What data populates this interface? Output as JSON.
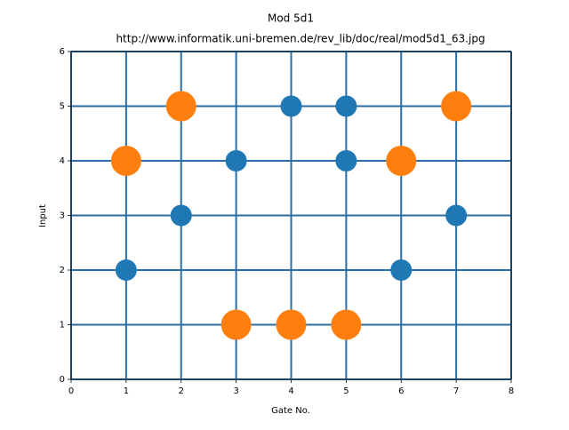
{
  "chart_data": {
    "type": "scatter",
    "title": "Mod 5d1",
    "subtitle": "http://www.informatik.uni-bremen.de/rev_lib/doc/real/mod5d1_63.jpg",
    "x_label": "Gate No.",
    "y_label": "Input",
    "series": [
      {
        "color": "#1f77b4",
        "x": [
          1,
          2,
          3,
          4,
          5,
          5,
          6,
          7
        ],
        "values": [
          2,
          3,
          4,
          5,
          5,
          4,
          2,
          3
        ]
      },
      {
        "color": "#ff7f0e",
        "x": [
          1,
          2,
          3,
          4,
          5,
          6,
          7
        ],
        "values": [
          4,
          5,
          1,
          1,
          1,
          4,
          5
        ]
      }
    ],
    "xlim": [
      0,
      8
    ],
    "xticks": [
      0,
      1,
      2,
      3,
      4,
      5,
      6,
      7,
      8
    ],
    "ylim": [
      0,
      6
    ],
    "yticks": [
      0,
      1,
      2,
      3,
      4,
      5,
      6
    ],
    "grid": true,
    "grid_color": "#2a6ea5"
  }
}
